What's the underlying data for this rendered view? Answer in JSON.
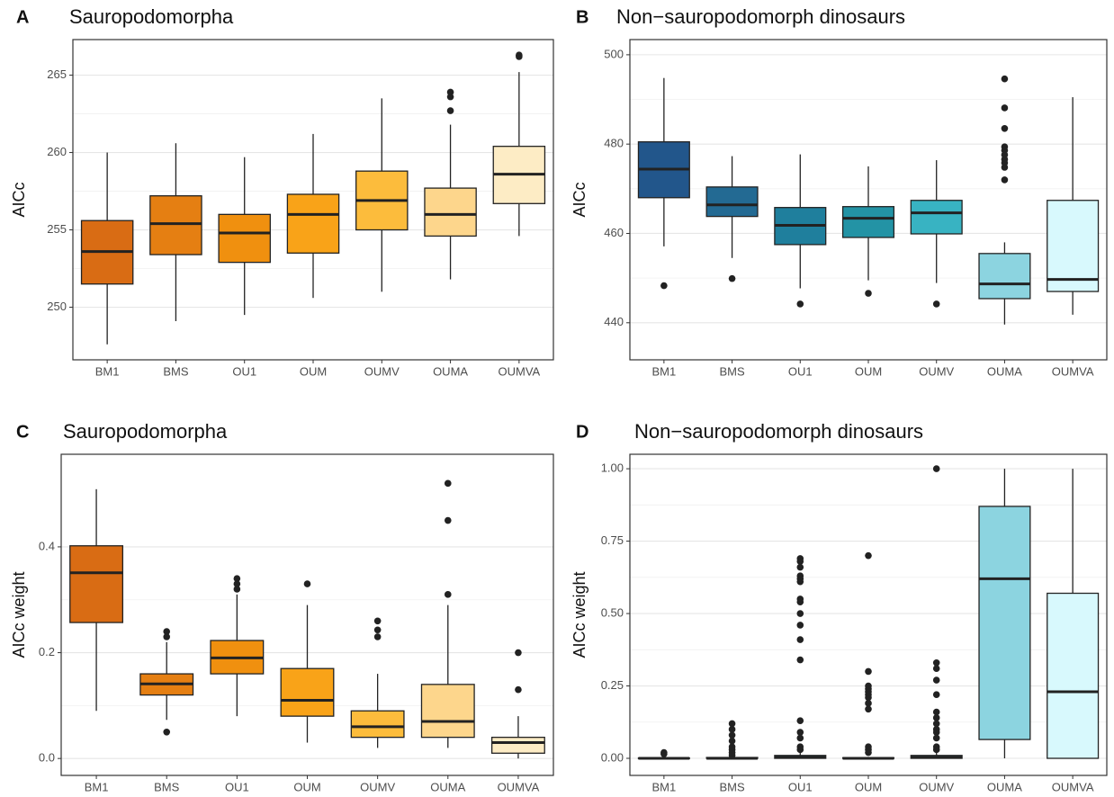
{
  "chart_data": [
    {
      "type": "box",
      "tag": "A",
      "title": "Sauropodomorpha",
      "ylabel": "AICc",
      "categories": [
        "BM1",
        "BMS",
        "OU1",
        "OUM",
        "OUMV",
        "OUMA",
        "OUMVA"
      ],
      "colors": [
        "#d96c14",
        "#e57f12",
        "#f0900f",
        "#f9a318",
        "#fcbc3c",
        "#fdd68c",
        "#fdecc5"
      ],
      "ylim": [
        246.6,
        267.3
      ],
      "yticks": [
        250,
        255,
        260,
        265
      ],
      "grid": true,
      "boxes": [
        {
          "low": 247.6,
          "q1": 251.5,
          "median": 253.6,
          "q3": 255.6,
          "high": 260.0,
          "outliers": []
        },
        {
          "low": 249.1,
          "q1": 253.4,
          "median": 255.4,
          "q3": 257.2,
          "high": 260.6,
          "outliers": []
        },
        {
          "low": 249.5,
          "q1": 252.9,
          "median": 254.8,
          "q3": 256.0,
          "high": 259.7,
          "outliers": []
        },
        {
          "low": 250.6,
          "q1": 253.5,
          "median": 256.0,
          "q3": 257.3,
          "high": 261.2,
          "outliers": []
        },
        {
          "low": 251.0,
          "q1": 255.0,
          "median": 256.9,
          "q3": 258.8,
          "high": 263.5,
          "outliers": []
        },
        {
          "low": 251.8,
          "q1": 254.6,
          "median": 256.0,
          "q3": 257.7,
          "high": 261.8,
          "outliers": [
            263.9,
            263.6,
            262.7
          ]
        },
        {
          "low": 254.6,
          "q1": 256.7,
          "median": 258.6,
          "q3": 260.4,
          "high": 265.2,
          "outliers": [
            266.3,
            266.2
          ]
        }
      ]
    },
    {
      "type": "box",
      "tag": "B",
      "title": "Non−sauropodomorph dinosaurs",
      "ylabel": "AICc",
      "categories": [
        "BM1",
        "BMS",
        "OU1",
        "OUM",
        "OUMV",
        "OUMA",
        "OUMVA"
      ],
      "colors": [
        "#22568b",
        "#236a93",
        "#1f7f9d",
        "#2393a5",
        "#38b3c2",
        "#8cd4e0",
        "#d8f9fd"
      ],
      "ylim": [
        431.7,
        503.4
      ],
      "yticks": [
        440,
        460,
        480,
        500
      ],
      "grid": true,
      "boxes": [
        {
          "low": 457.1,
          "q1": 468.0,
          "median": 474.4,
          "q3": 480.5,
          "high": 494.8,
          "outliers": [
            448.3
          ]
        },
        {
          "low": 454.5,
          "q1": 463.8,
          "median": 466.4,
          "q3": 470.4,
          "high": 477.3,
          "outliers": [
            449.9
          ]
        },
        {
          "low": 447.7,
          "q1": 457.5,
          "median": 461.8,
          "q3": 465.8,
          "high": 477.7,
          "outliers": [
            444.2
          ]
        },
        {
          "low": 449.5,
          "q1": 459.1,
          "median": 463.4,
          "q3": 466.0,
          "high": 475.0,
          "outliers": [
            446.6
          ]
        },
        {
          "low": 448.9,
          "q1": 459.9,
          "median": 464.6,
          "q3": 467.4,
          "high": 476.4,
          "outliers": [
            444.2
          ]
        },
        {
          "low": 439.6,
          "q1": 445.4,
          "median": 448.7,
          "q3": 455.5,
          "high": 458.0,
          "outliers": [
            494.6,
            488.1,
            483.5,
            479.4,
            478.6,
            477.6,
            476.6,
            475.8,
            474.8,
            472.0
          ]
        },
        {
          "low": 441.8,
          "q1": 447.0,
          "median": 449.7,
          "q3": 467.4,
          "high": 490.5,
          "outliers": []
        }
      ]
    },
    {
      "type": "box",
      "tag": "C",
      "title": "Sauropodomorpha",
      "ylabel": "AICc weight",
      "categories": [
        "BM1",
        "BMS",
        "OU1",
        "OUM",
        "OUMV",
        "OUMA",
        "OUMVA"
      ],
      "colors": [
        "#d96c14",
        "#e57f12",
        "#f0900f",
        "#f9a318",
        "#fcbc3c",
        "#fdd68c",
        "#fdecc5"
      ],
      "ylim": [
        -0.032,
        0.575
      ],
      "yticks": [
        {
          "value": 0,
          "label": "0.0"
        },
        0.2,
        0.4
      ],
      "grid": true,
      "boxes": [
        {
          "low": 0.09,
          "q1": 0.257,
          "median": 0.351,
          "q3": 0.402,
          "high": 0.509,
          "outliers": []
        },
        {
          "low": 0.073,
          "q1": 0.12,
          "median": 0.141,
          "q3": 0.16,
          "high": 0.22,
          "outliers": [
            0.24,
            0.23,
            0.05
          ]
        },
        {
          "low": 0.08,
          "q1": 0.16,
          "median": 0.19,
          "q3": 0.223,
          "high": 0.31,
          "outliers": [
            0.34,
            0.33,
            0.32
          ]
        },
        {
          "low": 0.03,
          "q1": 0.08,
          "median": 0.11,
          "q3": 0.17,
          "high": 0.29,
          "outliers": [
            0.33
          ]
        },
        {
          "low": 0.02,
          "q1": 0.04,
          "median": 0.06,
          "q3": 0.09,
          "high": 0.16,
          "outliers": [
            0.26,
            0.243,
            0.23
          ]
        },
        {
          "low": 0.02,
          "q1": 0.04,
          "median": 0.07,
          "q3": 0.14,
          "high": 0.29,
          "outliers": [
            0.52,
            0.45,
            0.31
          ]
        },
        {
          "low": 0,
          "q1": 0.01,
          "median": 0.03,
          "q3": 0.04,
          "high": 0.08,
          "outliers": [
            0.2,
            0.13
          ]
        }
      ]
    },
    {
      "type": "box",
      "tag": "D",
      "title": "Non−sauropodomorph dinosaurs",
      "ylabel": "AICc weight",
      "categories": [
        "BM1",
        "BMS",
        "OU1",
        "OUM",
        "OUMV",
        "OUMA",
        "OUMVA"
      ],
      "colors": [
        "#22568b",
        "#236a93",
        "#1f7f9d",
        "#2393a5",
        "#38b3c2",
        "#8cd4e0",
        "#d8f9fd"
      ],
      "ylim": [
        -0.059,
        1.05
      ],
      "yticks": [
        {
          "value": 0,
          "label": "0.00"
        },
        {
          "value": 0.25,
          "label": "0.25"
        },
        {
          "value": 0.5,
          "label": "0.50"
        },
        {
          "value": 0.75,
          "label": "0.75"
        },
        {
          "value": 1,
          "label": "1.00"
        }
      ],
      "grid": true,
      "boxes": [
        {
          "low": 0,
          "q1": 0,
          "median": 0,
          "q3": 0.001,
          "high": 0.002,
          "outliers": [
            0.02,
            0.015
          ]
        },
        {
          "low": 0,
          "q1": 0,
          "median": 0,
          "q3": 0.003,
          "high": 0.006,
          "outliers": [
            0.12,
            0.1,
            0.08,
            0.06,
            0.04,
            0.03,
            0.02,
            0.01
          ]
        },
        {
          "low": 0,
          "q1": 0,
          "median": 0.003,
          "q3": 0.01,
          "high": 0.02,
          "outliers": [
            0.69,
            0.68,
            0.66,
            0.63,
            0.62,
            0.61,
            0.55,
            0.54,
            0.5,
            0.46,
            0.41,
            0.34,
            0.13,
            0.09,
            0.07,
            0.04,
            0.03
          ]
        },
        {
          "low": 0,
          "q1": 0,
          "median": 0,
          "q3": 0.002,
          "high": 0.005,
          "outliers": [
            0.7,
            0.3,
            0.25,
            0.24,
            0.23,
            0.22,
            0.21,
            0.19,
            0.17,
            0.04,
            0.03,
            0.02
          ]
        },
        {
          "low": 0,
          "q1": 0,
          "median": 0.003,
          "q3": 0.01,
          "high": 0.02,
          "outliers": [
            1,
            0.33,
            0.31,
            0.27,
            0.22,
            0.16,
            0.14,
            0.12,
            0.1,
            0.09,
            0.07,
            0.04,
            0.03
          ]
        },
        {
          "low": 0,
          "q1": 0.065,
          "median": 0.62,
          "q3": 0.87,
          "high": 1,
          "outliers": []
        },
        {
          "low": 0,
          "q1": 0,
          "median": 0.23,
          "q3": 0.57,
          "high": 1,
          "outliers": []
        }
      ]
    }
  ]
}
